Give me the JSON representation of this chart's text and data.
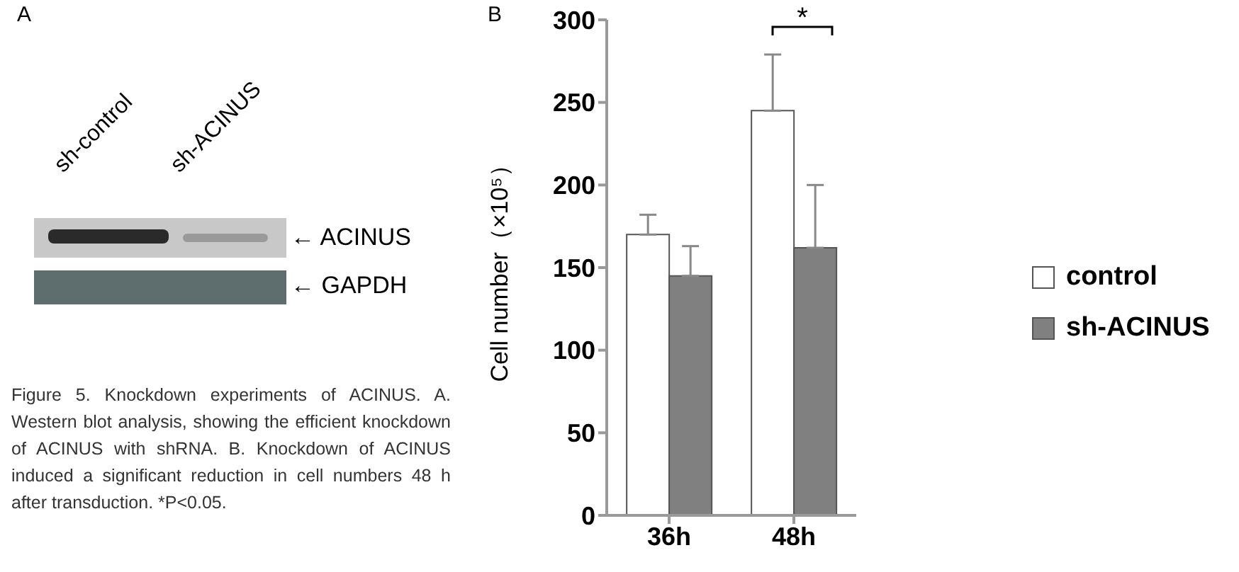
{
  "chart_data": [
    {
      "type": "other",
      "title": "A",
      "annotations": [
        "sh-control",
        "sh-ACINUS",
        "← ACINUS",
        "← GAPDH",
        "Figure 5. Knockdown experiments of ACINUS. A. Western blot analysis, showing the efficient knockdown of ACINUS with shRNA. B. Knockdown of ACINUS induced a significant reduction in cell numbers 48 h after transduction. *P<0.05."
      ]
    },
    {
      "type": "bar",
      "title": "B",
      "ylabel": "Cell number（×10⁵）",
      "categories": [
        "36h",
        "48h"
      ],
      "series": [
        {
          "name": "control",
          "color": "#ffffff",
          "values": [
            170,
            245
          ],
          "errors": [
            [
              170,
              182
            ],
            [
              245,
              279
            ]
          ]
        },
        {
          "name": "sh-ACINUS",
          "color": "#808080",
          "values": [
            145,
            162
          ],
          "errors": [
            [
              145,
              163
            ],
            [
              162,
              200
            ]
          ]
        }
      ],
      "ylim": [
        0,
        300
      ],
      "yticks": [
        0,
        50,
        100,
        150,
        200,
        250,
        300
      ],
      "grid": false,
      "legend": "right",
      "annotations": [
        "*"
      ]
    }
  ]
}
